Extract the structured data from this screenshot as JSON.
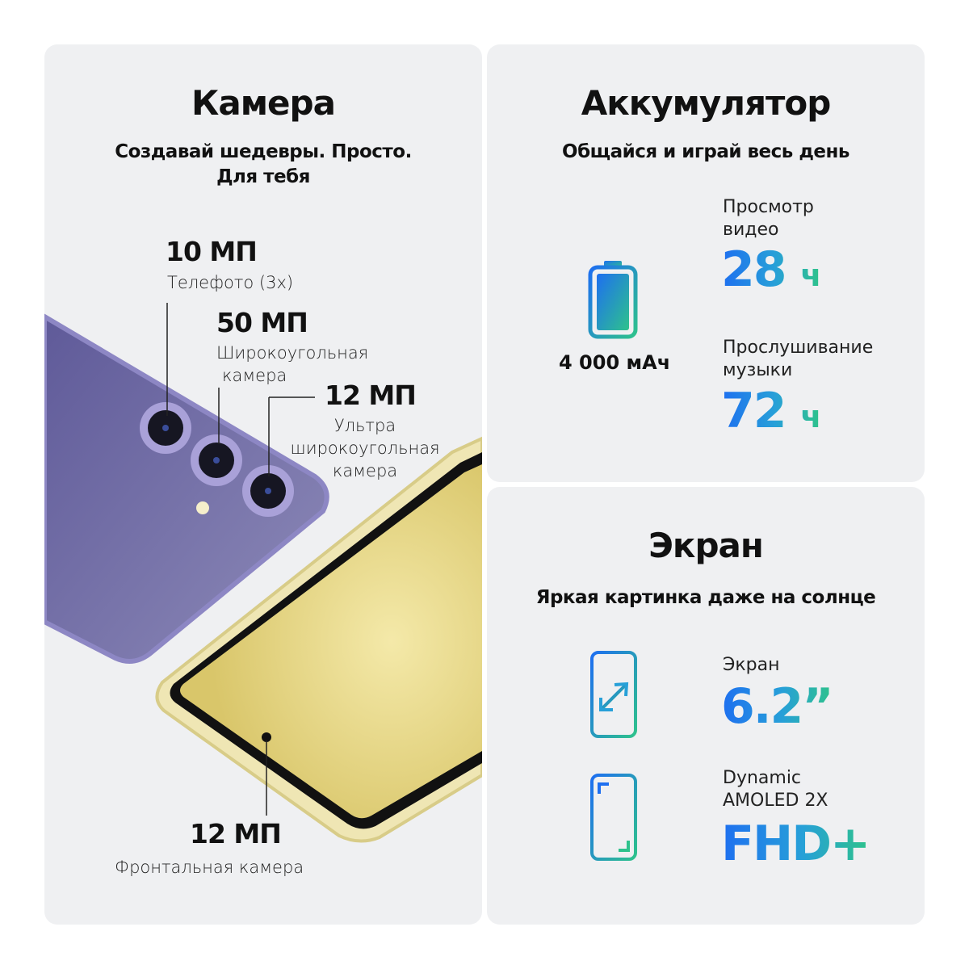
{
  "camera": {
    "title": "Камера",
    "subtitle_line1": "Создавай шедевры. Просто.",
    "subtitle_line2": "Для тебя",
    "specs": [
      {
        "mp": "10 МП",
        "label_lines": [
          "Телефото (3х)"
        ]
      },
      {
        "mp": "50 МП",
        "label_lines": [
          "Широкоугольная",
          "камера"
        ]
      },
      {
        "mp": "12 МП",
        "label_lines": [
          "Ультра",
          "широкоугольная",
          "камера"
        ]
      },
      {
        "mp": "12 МП",
        "label_lines": [
          "Фронтальная камера"
        ]
      }
    ],
    "phone_back_color": "#6e6aa3",
    "phone_front_color": "#efe6b4"
  },
  "battery": {
    "title": "Аккумулятор",
    "subtitle": "Общайся и играй весь день",
    "capacity": "4 000 мАч",
    "icon": "battery-icon",
    "video": {
      "label_line1": "Просмотр",
      "label_line2": "видео",
      "value": "28",
      "unit": "ч"
    },
    "music": {
      "label_line1": "Прослушивание",
      "label_line2": "музыки",
      "value": "72",
      "unit": "ч"
    }
  },
  "screen": {
    "title": "Экран",
    "subtitle": "Яркая картинка даже на солнце",
    "size": {
      "label": "Экран",
      "value": "6.2”",
      "icon": "screen-size-icon"
    },
    "display": {
      "label_line1": "Dynamic",
      "label_line2": "AMOLED 2X",
      "value": "FHD+",
      "icon": "fullscreen-icon"
    }
  },
  "colors": {
    "gradient_start": "#1e6ff0",
    "gradient_end": "#2ec28c",
    "card_bg": "#eff0f2"
  }
}
